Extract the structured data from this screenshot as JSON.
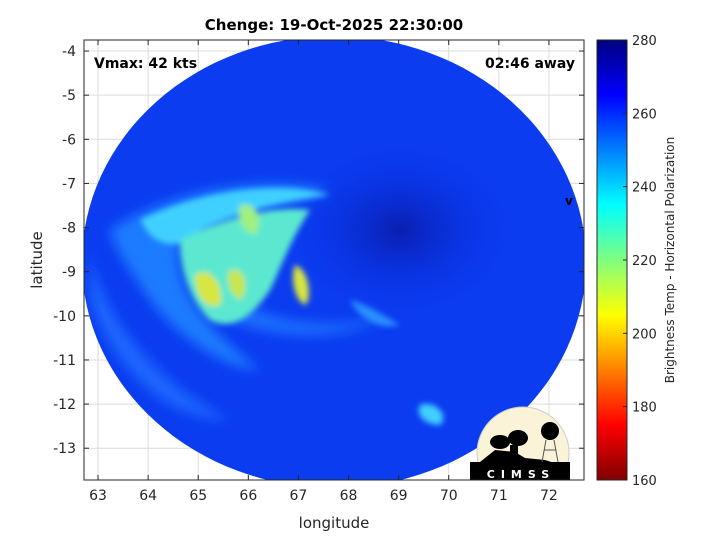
{
  "chart_data": {
    "type": "heatmap",
    "title": "Chenge: 19-Oct-2025 22:30:00",
    "xlabel": "longitude",
    "ylabel": "latitude",
    "xlim": [
      62.72,
      72.7
    ],
    "ylim": [
      -13.72,
      -3.75
    ],
    "xticks": [
      63,
      64,
      65,
      66,
      67,
      68,
      69,
      70,
      71,
      72
    ],
    "yticks": [
      -4,
      -5,
      -6,
      -7,
      -8,
      -9,
      -10,
      -11,
      -12,
      -13
    ],
    "grid": true,
    "colorbar": {
      "label": "Brightness Temp - Horizontal Polarization",
      "range": [
        160,
        280
      ],
      "ticks": [
        160,
        180,
        200,
        220,
        240,
        260,
        280
      ],
      "colormap": "jet",
      "placement": "right"
    },
    "annotations": {
      "vmax": "Vmax: 42 kts",
      "time_away": "02:46 away",
      "center_marker": "v"
    }
  },
  "logo": {
    "text": "CIMSS"
  }
}
